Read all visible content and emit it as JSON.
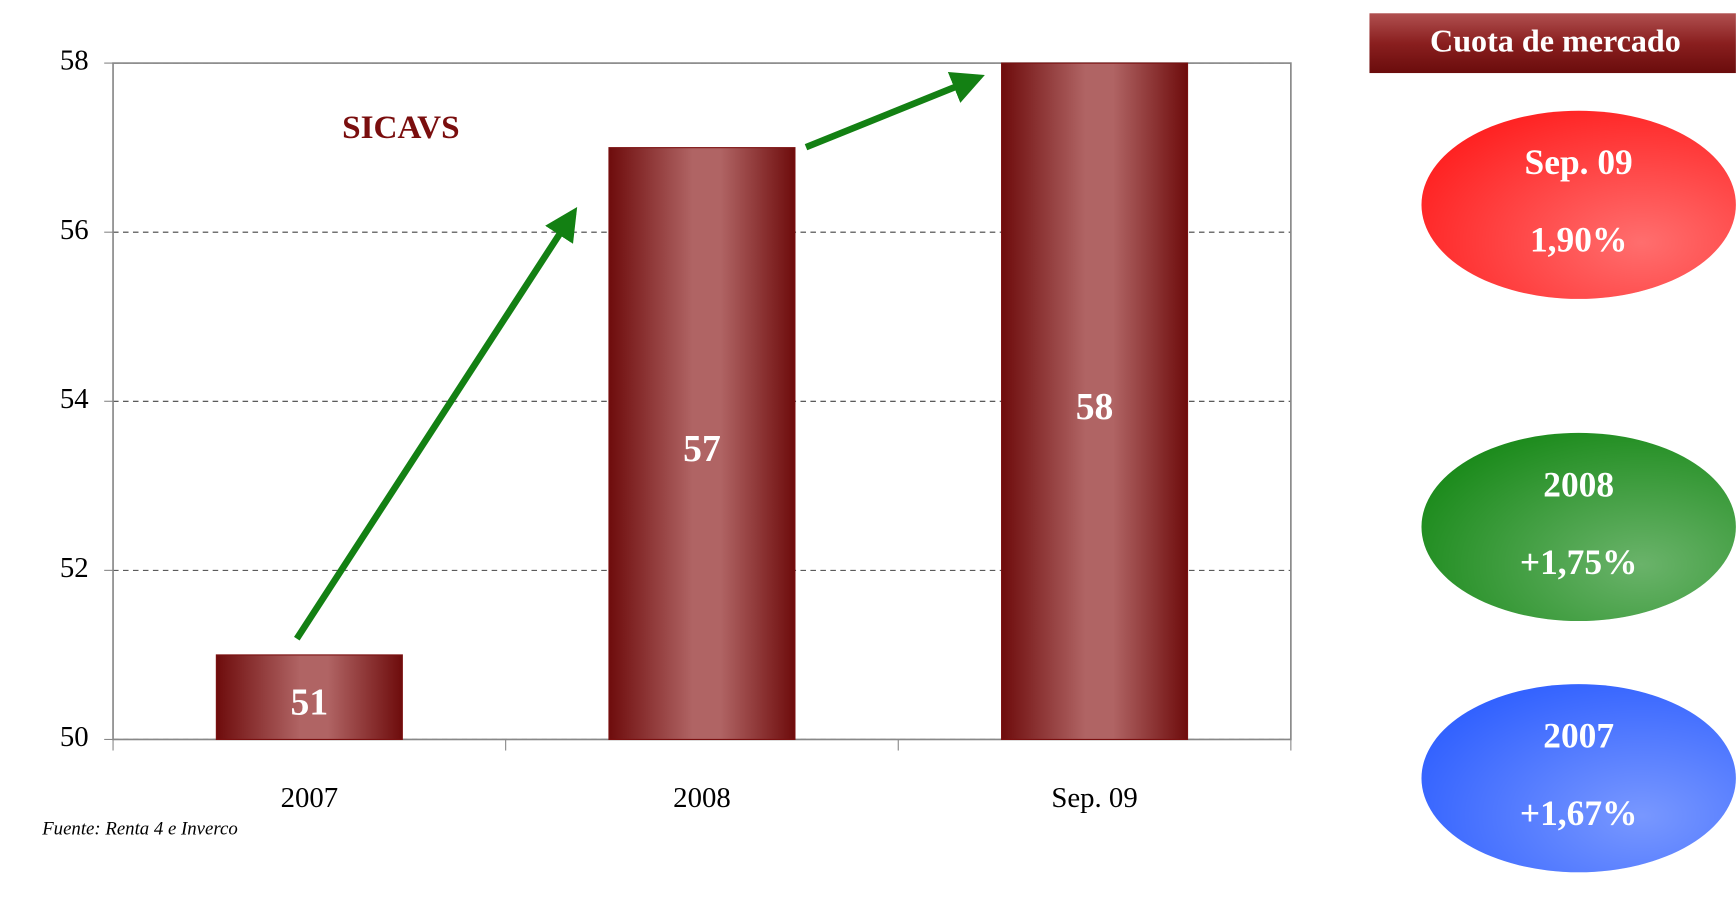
{
  "chart_data": {
    "type": "bar",
    "title": "SICAVS",
    "source": "Fuente: Renta 4 e Inverco",
    "categories": [
      "2007",
      "2008",
      "Sep. 09"
    ],
    "values": [
      51,
      57,
      58
    ],
    "color": "#7a1010",
    "ylim": [
      50,
      58
    ],
    "yticks": [
      50,
      52,
      54,
      56,
      58
    ],
    "grid": true
  },
  "market_share": {
    "title": "Cuota de mercado",
    "items": [
      {
        "period": "Sep. 09",
        "share": "1,90%",
        "color": "#ff2020"
      },
      {
        "period": "2008",
        "share": "+1,75%",
        "color": "#1a8a1a"
      },
      {
        "period": "2007",
        "share": "+1,67%",
        "color": "#3060ff"
      }
    ]
  }
}
